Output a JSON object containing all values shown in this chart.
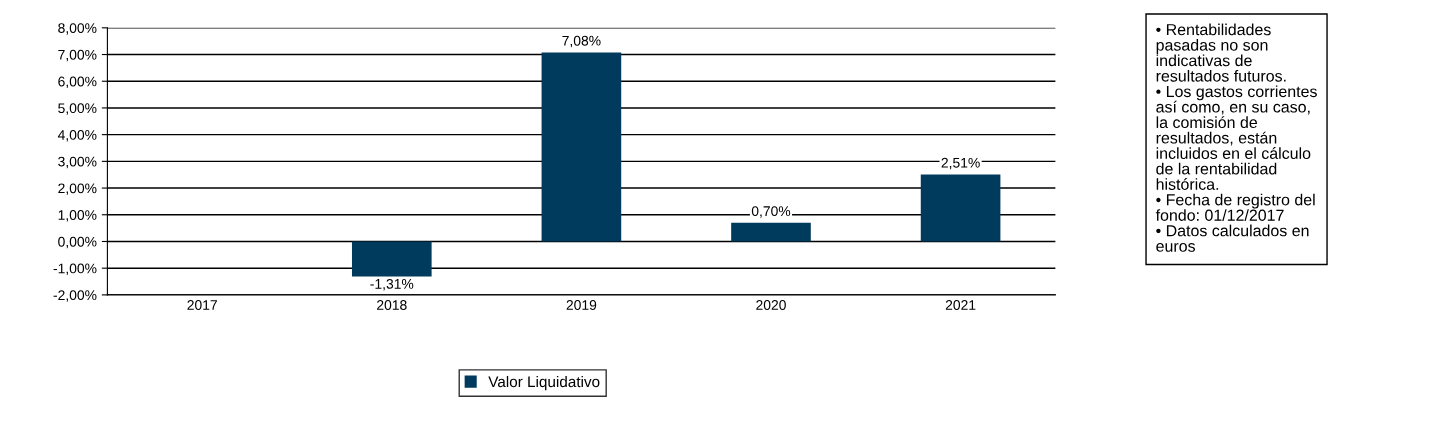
{
  "chart_data": {
    "type": "bar",
    "categories": [
      "2017",
      "2018",
      "2019",
      "2020",
      "2021"
    ],
    "series": [
      {
        "name": "Valor Liquidativo",
        "color": "#003a5d",
        "values": [
          null,
          -1.31,
          7.08,
          0.7,
          2.51
        ],
        "value_labels": [
          null,
          "-1,31%",
          "7,08%",
          "0,70%",
          "2,51%"
        ]
      }
    ],
    "ylim": [
      -2,
      8
    ],
    "yticks": [
      {
        "value": -2,
        "label": "-2,00%"
      },
      {
        "value": -1,
        "label": "-1,00%"
      },
      {
        "value": 0,
        "label": "0,00%"
      },
      {
        "value": 1,
        "label": "1,00%"
      },
      {
        "value": 2,
        "label": "2,00%"
      },
      {
        "value": 3,
        "label": "3,00%"
      },
      {
        "value": 4,
        "label": "4,00%"
      },
      {
        "value": 5,
        "label": "5,00%"
      },
      {
        "value": 6,
        "label": "6,00%"
      },
      {
        "value": 7,
        "label": "7,00%"
      },
      {
        "value": 8,
        "label": "8,00%"
      }
    ],
    "grid": "y",
    "legend": "bottom",
    "annotations": [
      "• Rentabilidades\npasadas no son\nindicativas de\nresultados futuros.\n• Los gastos corrientes\nasí como, en su caso,\nla comisión de\nresultados, están\nincluidos en el cálculo\nde la rentabilidad\nhistórica.\n• Fecha de registro del\nfondo: 01/12/2017\n• Datos calculados en\neuros"
    ]
  }
}
